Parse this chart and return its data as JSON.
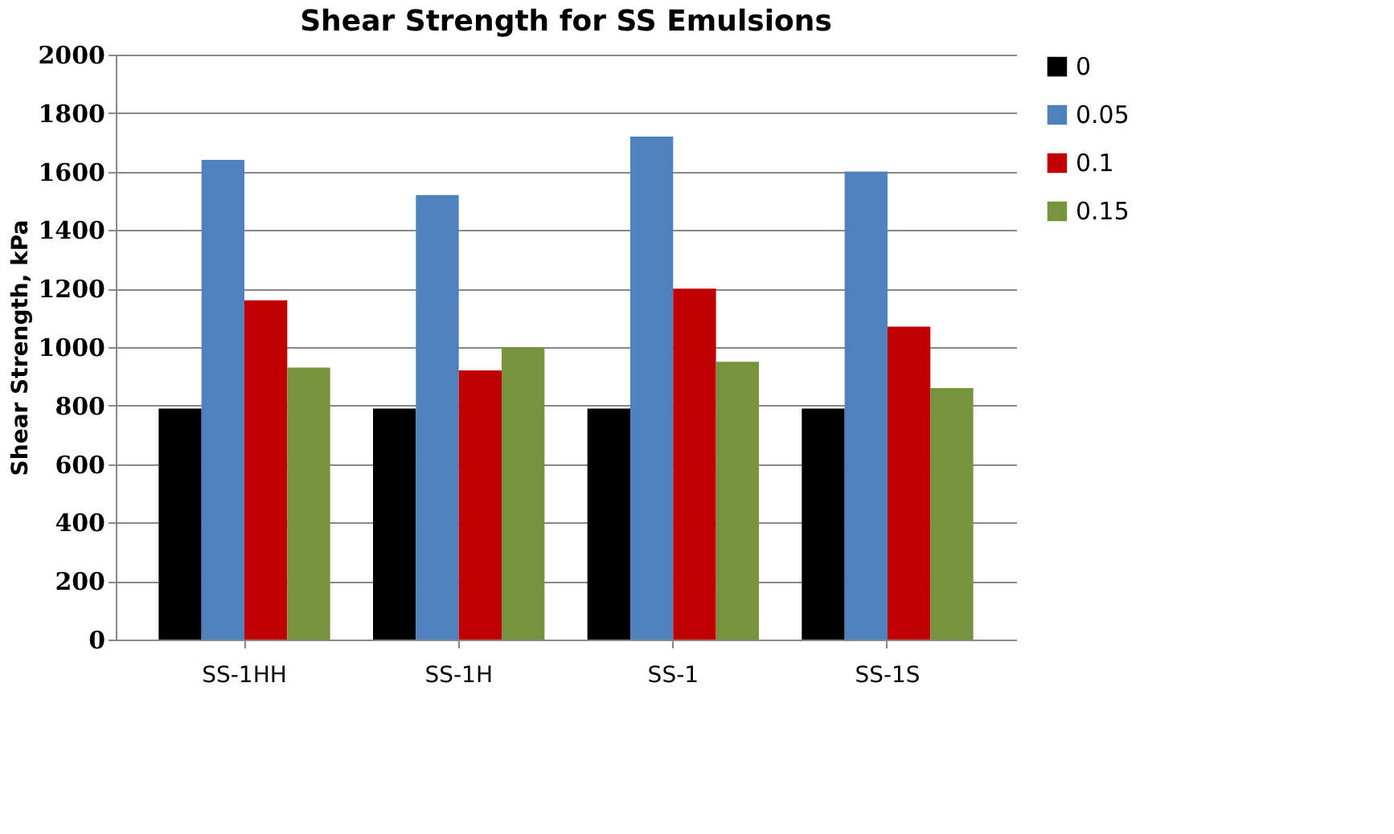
{
  "chart_data": {
    "type": "bar",
    "title": "Shear Strength for SS Emulsions",
    "ylabel": "Shear Strength, kPa",
    "categories": [
      "SS-1HH",
      "SS-1H",
      "SS-1",
      "SS-1S"
    ],
    "series": [
      {
        "name": "0",
        "color": "#000000",
        "values": [
          790,
          790,
          790,
          790
        ]
      },
      {
        "name": "0.05",
        "color": "#4f81bd",
        "values": [
          1640,
          1520,
          1720,
          1600
        ]
      },
      {
        "name": "0.1",
        "color": "#c00000",
        "values": [
          1160,
          920,
          1200,
          1070
        ]
      },
      {
        "name": "0.15",
        "color": "#77933c",
        "values": [
          930,
          1000,
          950,
          860
        ]
      }
    ],
    "ylim": [
      0,
      2000
    ],
    "yticks": [
      0,
      200,
      400,
      600,
      800,
      1000,
      1200,
      1400,
      1600,
      1800,
      2000
    ],
    "grid": "y",
    "legend": "right"
  }
}
